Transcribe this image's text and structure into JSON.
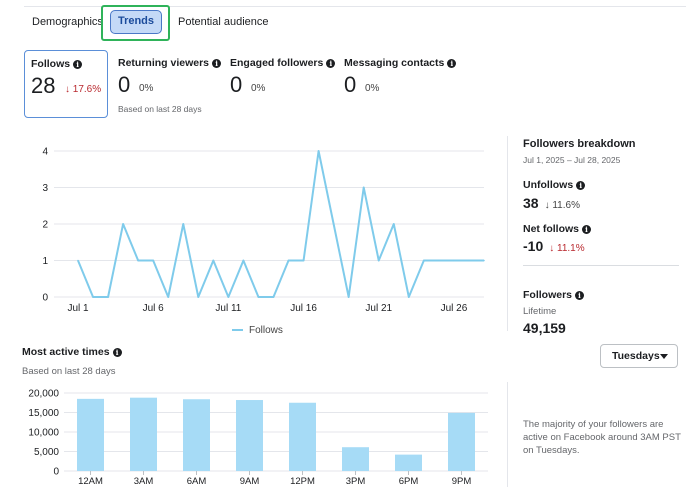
{
  "tabs": {
    "demographics": "Demographics",
    "trends": "Trends",
    "potential": "Potential audience"
  },
  "metrics": {
    "follows": {
      "label": "Follows",
      "value": "28",
      "change": "↓ 17.6%"
    },
    "returning": {
      "label": "Returning viewers",
      "value": "0",
      "change": "0%",
      "sub": "Based on last 28 days"
    },
    "engaged": {
      "label": "Engaged followers",
      "value": "0",
      "change": "0%"
    },
    "messaging": {
      "label": "Messaging contacts",
      "value": "0",
      "change": "0%"
    }
  },
  "follows_chart": {
    "legend": "Follows",
    "color": "#7fcbeb"
  },
  "breakdown": {
    "title": "Followers breakdown",
    "date_range": "Jul 1, 2025 – Jul 28, 2025",
    "unfollows_label": "Unfollows",
    "unfollows_value": "38",
    "unfollows_change": "↓ 11.6%",
    "net_label": "Net follows",
    "net_value": "-10",
    "net_change": "↓ 11.1%",
    "followers_label": "Followers",
    "lifetime_label": "Lifetime",
    "followers_value": "49,159"
  },
  "active_times": {
    "title": "Most active times",
    "subtitle": "Based on last 28 days",
    "day_selected": "Tuesdays",
    "note": "The majority of your followers are active on Facebook around 3AM PST on Tuesdays.",
    "color": "#a6dbf6"
  },
  "chart_data": [
    {
      "type": "line",
      "x": [
        "Jul 1",
        "Jul 2",
        "Jul 3",
        "Jul 4",
        "Jul 5",
        "Jul 6",
        "Jul 7",
        "Jul 8",
        "Jul 9",
        "Jul 10",
        "Jul 11",
        "Jul 12",
        "Jul 13",
        "Jul 14",
        "Jul 15",
        "Jul 16",
        "Jul 17",
        "Jul 18",
        "Jul 19",
        "Jul 20",
        "Jul 21",
        "Jul 22",
        "Jul 23",
        "Jul 24",
        "Jul 25",
        "Jul 26",
        "Jul 27",
        "Jul 28"
      ],
      "series": [
        {
          "name": "Follows",
          "values": [
            1,
            0,
            0,
            2,
            1,
            1,
            0,
            2,
            0,
            1,
            0,
            1,
            0,
            0,
            1,
            1,
            4,
            2,
            0,
            3,
            1,
            2,
            0,
            1,
            1,
            1,
            1,
            1
          ]
        }
      ],
      "xticks": [
        "Jul 1",
        "Jul 6",
        "Jul 11",
        "Jul 16",
        "Jul 21",
        "Jul 26"
      ],
      "ylim": [
        0,
        4
      ],
      "yticks": [
        "0",
        "1",
        "2",
        "3",
        "4"
      ],
      "grid": true,
      "legend": "bottom"
    },
    {
      "type": "bar",
      "categories": [
        "12AM",
        "3AM",
        "6AM",
        "9AM",
        "12PM",
        "3PM",
        "6PM",
        "9PM"
      ],
      "values": [
        18500,
        18800,
        18400,
        18200,
        17500,
        6100,
        4200,
        14900
      ],
      "ylim": [
        0,
        20000
      ],
      "yticks": [
        "0",
        "5,000",
        "10,000",
        "15,000",
        "20,000"
      ],
      "grid": true
    }
  ]
}
